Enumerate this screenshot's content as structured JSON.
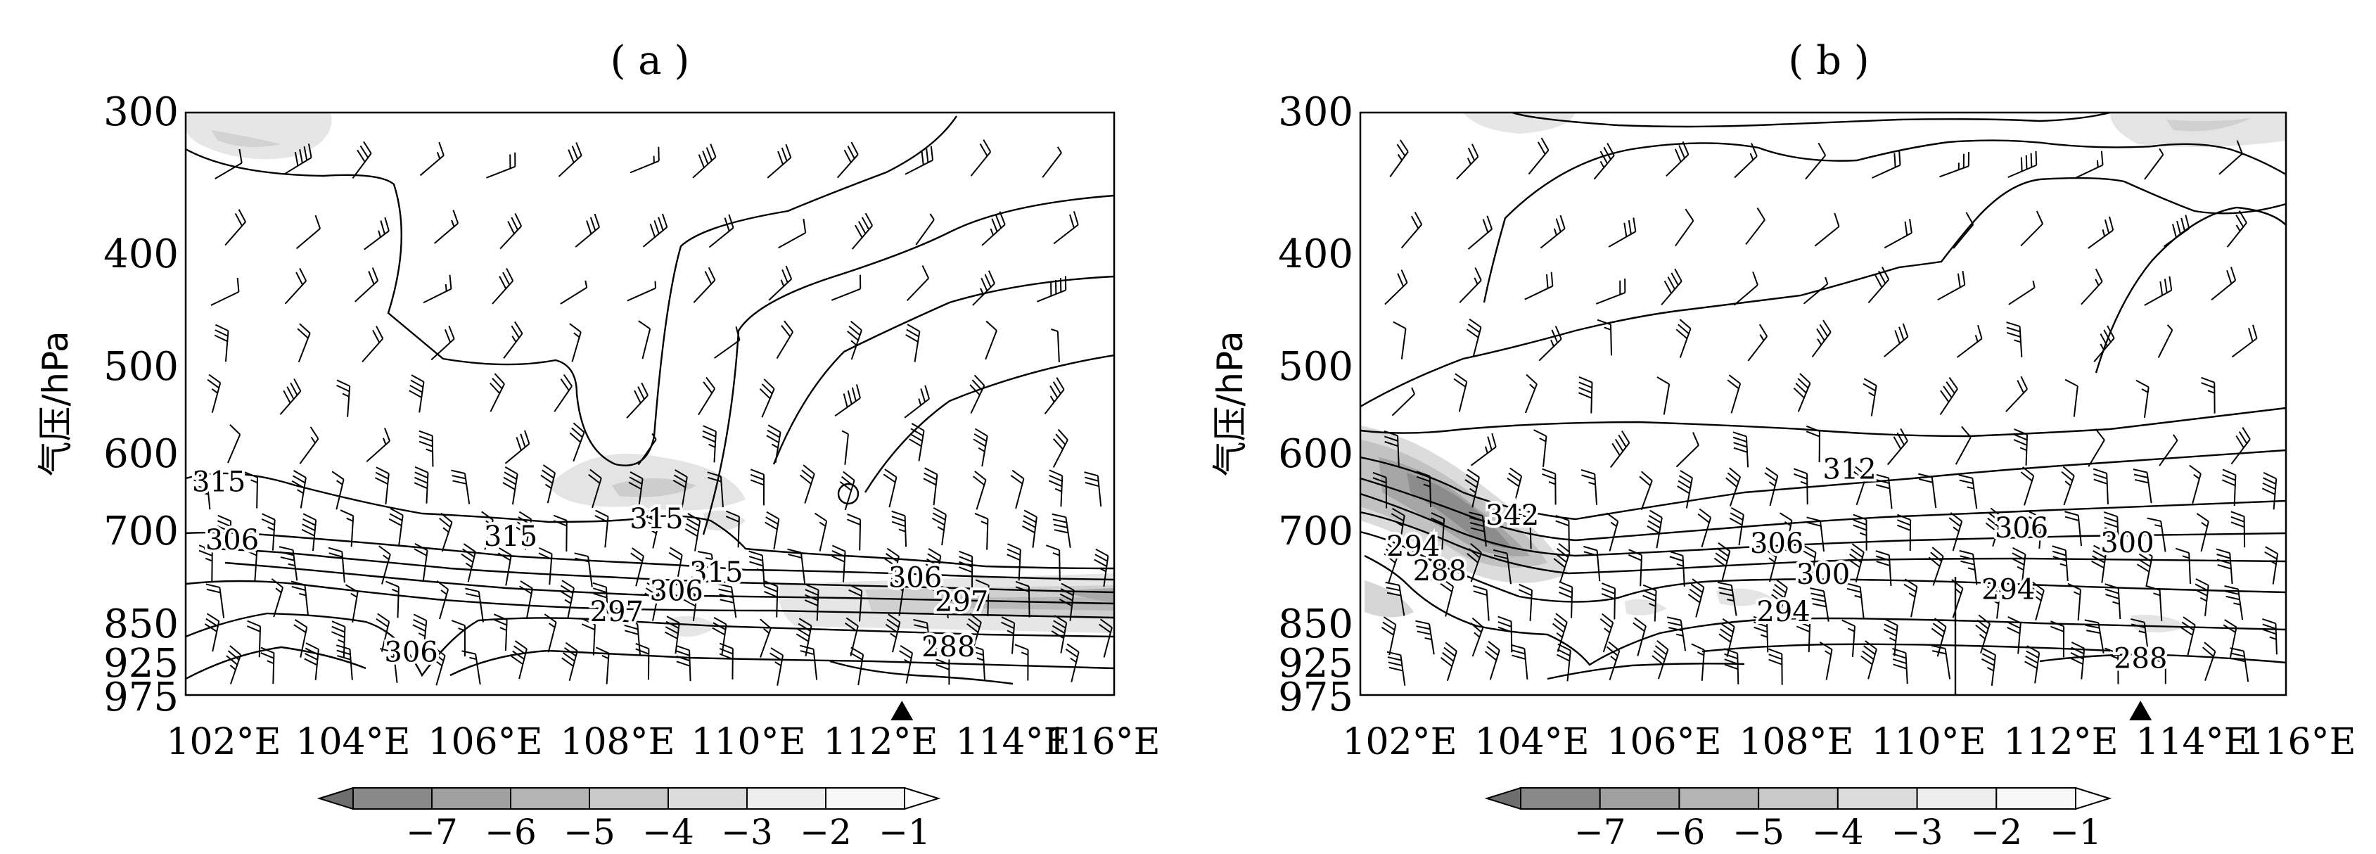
{
  "chart_data": [
    {
      "panel_label": "( a )",
      "type": "contour",
      "ylabel": "气压/hPa",
      "pressure_ticks": [
        300,
        400,
        500,
        600,
        700,
        850,
        925,
        975
      ],
      "x_ticks": [
        "102°E",
        "104°E",
        "106°E",
        "108°E",
        "110°E",
        "112°E",
        "114°E",
        "116°E"
      ],
      "xlim": [
        102,
        116
      ],
      "ylim": [
        975,
        300
      ],
      "marker_lon": 112.8,
      "contour_labels": [
        {
          "text": "315",
          "lon": 102.5,
          "p": 633
        },
        {
          "text": "306",
          "lon": 102.7,
          "p": 712
        },
        {
          "text": "315",
          "lon": 106.9,
          "p": 707
        },
        {
          "text": "315",
          "lon": 109.1,
          "p": 682
        },
        {
          "text": "315",
          "lon": 110.0,
          "p": 760
        },
        {
          "text": "306",
          "lon": 109.4,
          "p": 789
        },
        {
          "text": "306",
          "lon": 113.0,
          "p": 768
        },
        {
          "text": "297",
          "lon": 108.5,
          "p": 823
        },
        {
          "text": "297",
          "lon": 113.7,
          "p": 806
        },
        {
          "text": "306",
          "lon": 105.4,
          "p": 893
        },
        {
          "text": "288",
          "lon": 113.5,
          "p": 884
        }
      ]
    },
    {
      "panel_label": "( b )",
      "type": "contour",
      "ylabel": "气压/hPa",
      "pressure_ticks": [
        300,
        400,
        500,
        600,
        700,
        850,
        925,
        975
      ],
      "x_ticks": [
        "102°E",
        "104°E",
        "106°E",
        "108°E",
        "110°E",
        "112°E",
        "114°E",
        "116°E"
      ],
      "xlim": [
        102,
        116
      ],
      "ylim": [
        975,
        300
      ],
      "marker_lon": 113.8,
      "contour_labels": [
        {
          "text": "312",
          "lon": 109.4,
          "p": 617
        },
        {
          "text": "342",
          "lon": 104.3,
          "p": 677
        },
        {
          "text": "306",
          "lon": 108.3,
          "p": 717
        },
        {
          "text": "306",
          "lon": 112.0,
          "p": 695
        },
        {
          "text": "300",
          "lon": 113.6,
          "p": 716
        },
        {
          "text": "294",
          "lon": 102.8,
          "p": 721
        },
        {
          "text": "288",
          "lon": 103.2,
          "p": 758
        },
        {
          "text": "300",
          "lon": 109.0,
          "p": 763
        },
        {
          "text": "294",
          "lon": 108.4,
          "p": 823
        },
        {
          "text": "294",
          "lon": 111.8,
          "p": 787
        },
        {
          "text": "288",
          "lon": 113.8,
          "p": 905
        }
      ]
    }
  ],
  "colorbar": {
    "levels": [
      "−7",
      "−6",
      "−5",
      "−4",
      "−3",
      "−2",
      "−1"
    ],
    "colors": [
      "#6e6e6e",
      "#898989",
      "#a0a0a0",
      "#b5b5b5",
      "#c9c9c9",
      "#dcdcdc",
      "#eeeeee",
      "#f8f8f8"
    ]
  },
  "colors": {
    "line": "#000000",
    "shade_light": "#e2e2e2",
    "shade_mid": "#c8c8c8",
    "shade_dark": "#8f8f8f"
  }
}
